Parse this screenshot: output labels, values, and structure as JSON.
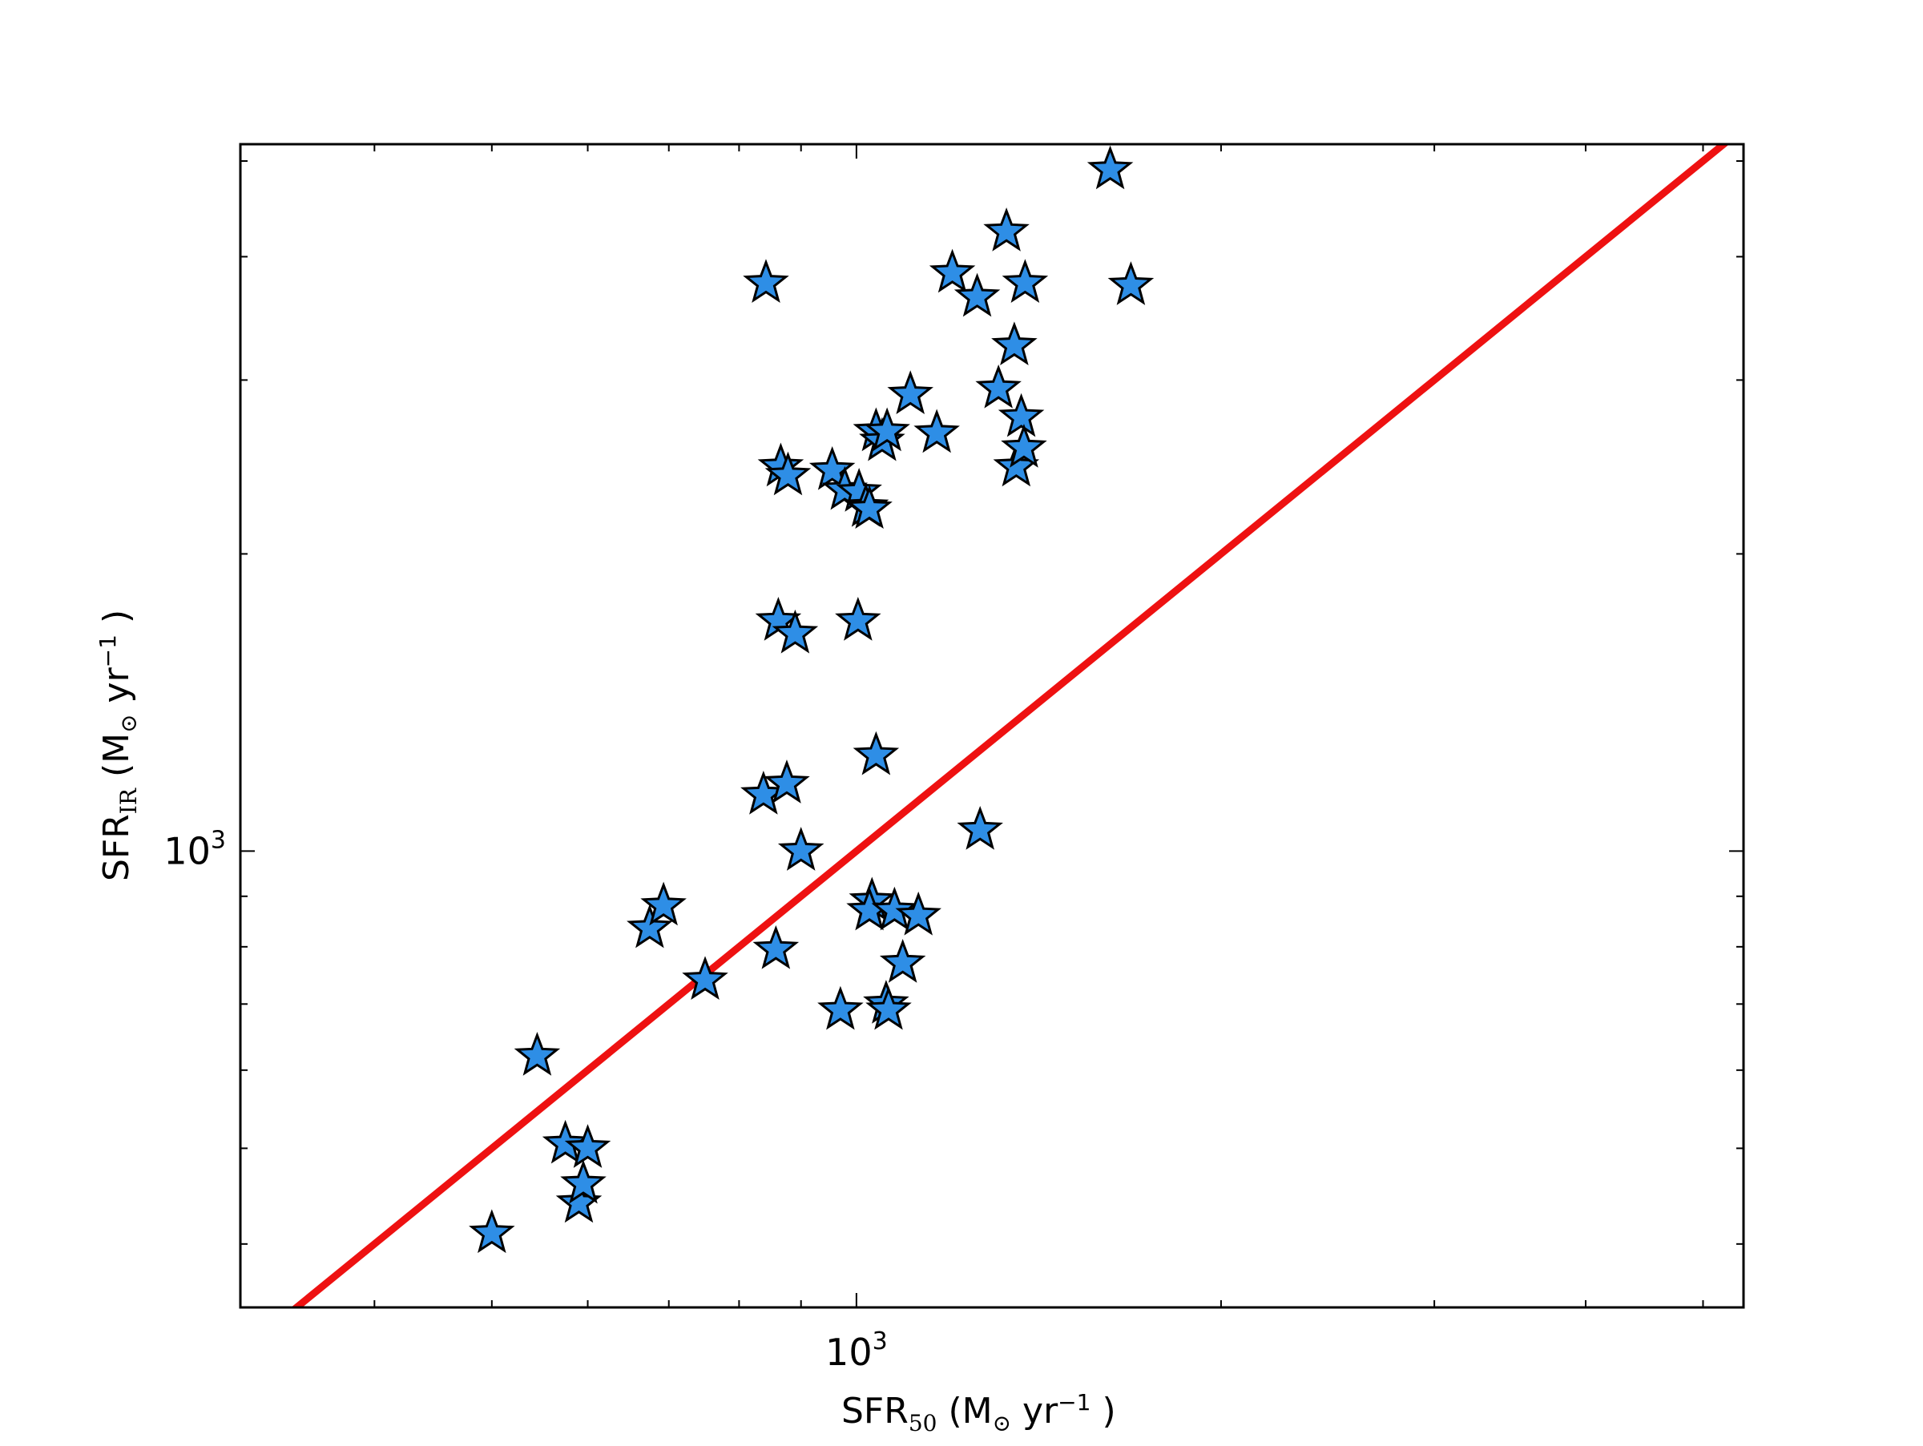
{
  "chart_data": {
    "type": "scatter",
    "x_scale": "log",
    "y_scale": "log",
    "xlim": [
      310,
      5400
    ],
    "ylim": [
      345,
      5200
    ],
    "grid": false,
    "legend": "none",
    "xlabel": {
      "base": "SFR",
      "sub": "50",
      "unit_pre": " (M",
      "unit_sub": "⊙",
      "unit_mid": " yr",
      "unit_sup": "−1",
      "unit_post": " )"
    },
    "ylabel": {
      "base": "SFR",
      "sub": "IR",
      "unit_pre": " (M",
      "unit_sub": "⊙",
      "unit_mid": " yr",
      "unit_sup": "−1",
      "unit_post": " )"
    },
    "x_major_ticks": [
      {
        "value": 1000,
        "base": "10",
        "exp": "3"
      }
    ],
    "y_major_ticks": [
      {
        "value": 1000,
        "base": "10",
        "exp": "3"
      }
    ],
    "x_minor_ticks": [
      400,
      500,
      600,
      700,
      800,
      900,
      2000,
      3000,
      4000,
      5000
    ],
    "y_minor_ticks": [
      400,
      500,
      600,
      700,
      800,
      900,
      2000,
      3000,
      4000,
      5000
    ],
    "reference_line": {
      "slope": 1,
      "intercept": 0,
      "color": "#ee1111"
    },
    "marker": {
      "shape": "star",
      "fill": "#2e8ee6",
      "stroke": "#000000"
    },
    "points": [
      [
        500,
        410
      ],
      [
        545,
        620
      ],
      [
        575,
        505
      ],
      [
        590,
        440
      ],
      [
        595,
        460
      ],
      [
        600,
        500
      ],
      [
        675,
        835
      ],
      [
        693,
        880
      ],
      [
        750,
        740
      ],
      [
        838,
        1140
      ],
      [
        842,
        3760
      ],
      [
        858,
        795
      ],
      [
        862,
        1710
      ],
      [
        866,
        2450
      ],
      [
        878,
        2400
      ],
      [
        876,
        1170
      ],
      [
        890,
        1660
      ],
      [
        900,
        1000
      ],
      [
        955,
        2430
      ],
      [
        978,
        2320
      ],
      [
        970,
        690
      ],
      [
        1003,
        1710
      ],
      [
        1005,
        2310
      ],
      [
        1018,
        2230
      ],
      [
        1025,
        2220
      ],
      [
        1030,
        890
      ],
      [
        1025,
        870
      ],
      [
        1038,
        1250
      ],
      [
        1038,
        2660
      ],
      [
        1050,
        2600
      ],
      [
        1060,
        2660
      ],
      [
        1058,
        700
      ],
      [
        1063,
        690
      ],
      [
        1075,
        870
      ],
      [
        1092,
        770
      ],
      [
        1108,
        2900
      ],
      [
        1125,
        860
      ],
      [
        1165,
        2650
      ],
      [
        1200,
        3850
      ],
      [
        1258,
        3640
      ],
      [
        1265,
        1050
      ],
      [
        1310,
        2940
      ],
      [
        1330,
        4240
      ],
      [
        1350,
        3250
      ],
      [
        1355,
        2450
      ],
      [
        1368,
        2750
      ],
      [
        1375,
        2560
      ],
      [
        1378,
        3760
      ],
      [
        1620,
        4900
      ],
      [
        1685,
        3740
      ]
    ]
  }
}
